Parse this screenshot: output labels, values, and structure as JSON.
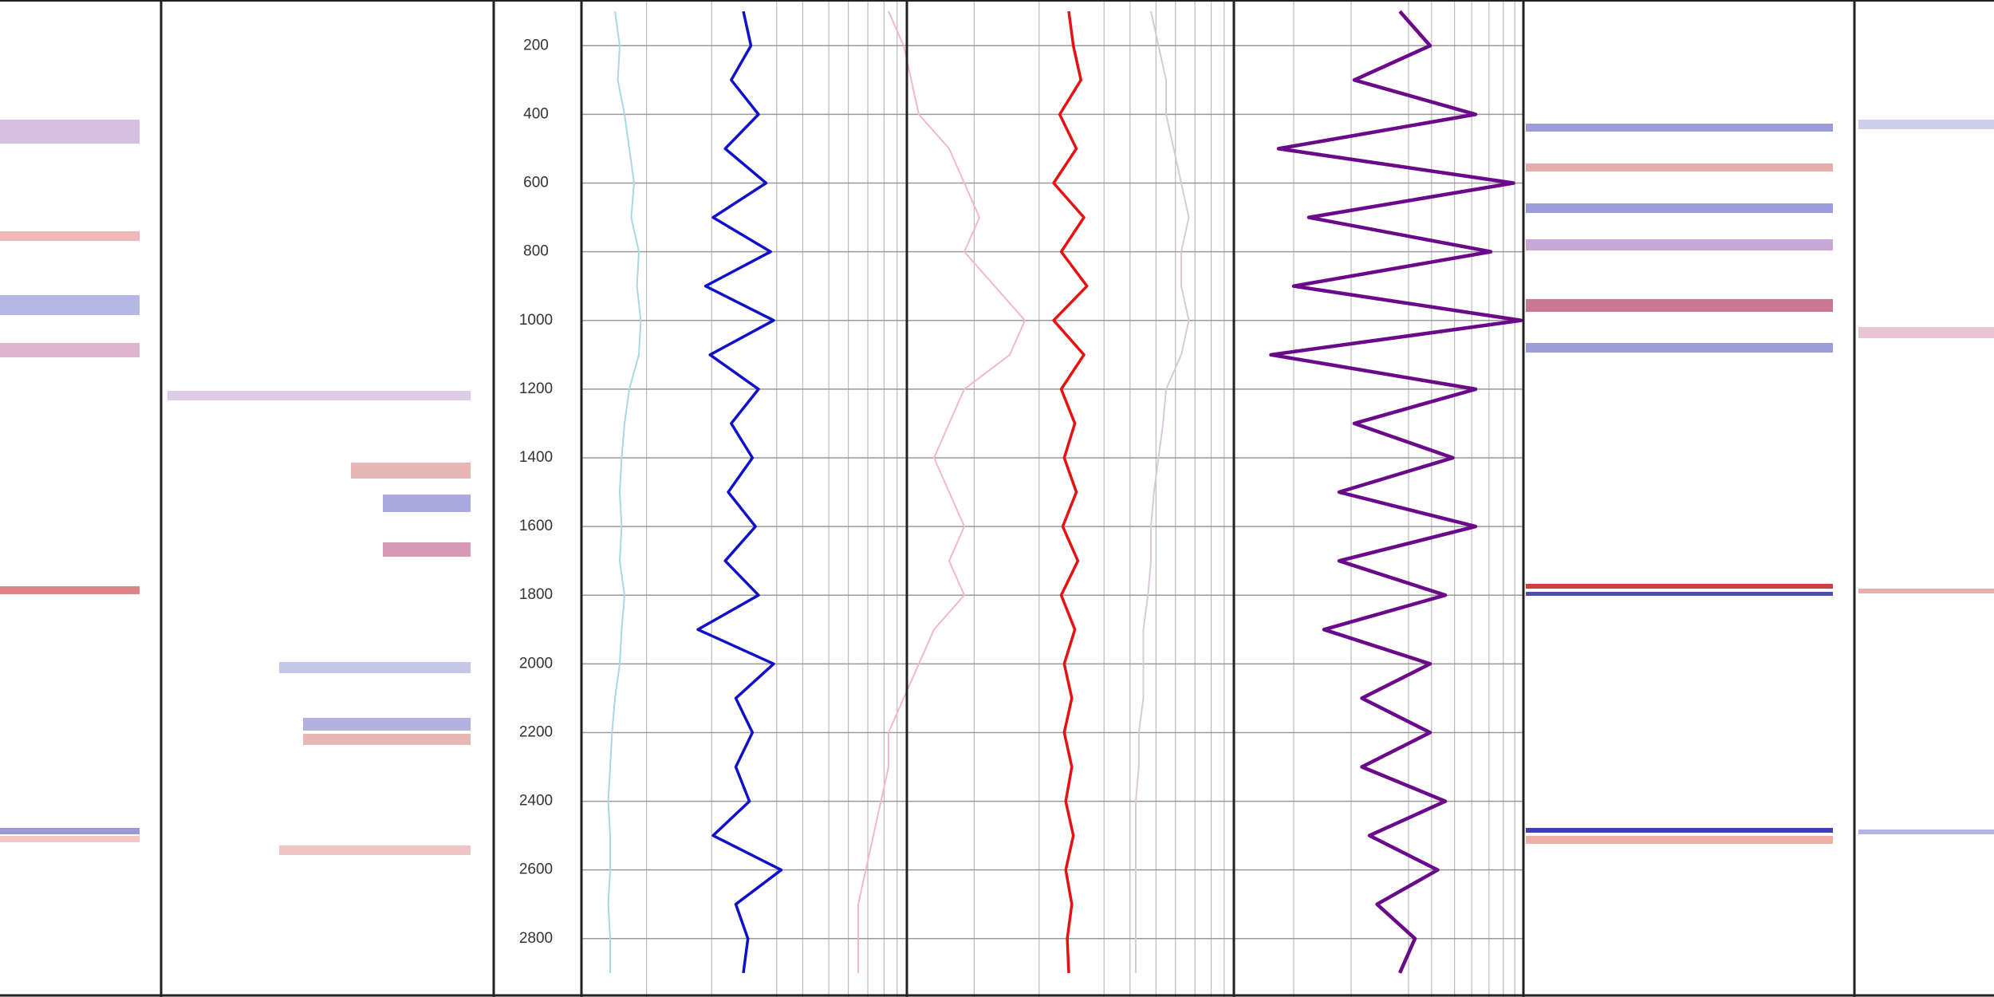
{
  "chart_data": {
    "type": "line",
    "ylim": [
      67,
      2970
    ],
    "yticks": [
      200,
      400,
      600,
      800,
      1000,
      1200,
      1400,
      1600,
      1800,
      2000,
      2200,
      2400,
      2600,
      2800
    ],
    "depth": [
      100,
      200,
      300,
      400,
      500,
      600,
      700,
      800,
      900,
      1000,
      1100,
      1200,
      1300,
      1400,
      1500,
      1600,
      1700,
      1800,
      1900,
      2000,
      2100,
      2200,
      2300,
      2400,
      2500,
      2600,
      2700,
      2800,
      2900
    ],
    "grid": true,
    "series": [
      {
        "color": "#a8d8e0",
        "values": [
          0.05,
          0.1,
          0.08,
          0.15,
          0.2,
          0.25,
          0.22,
          0.3,
          0.28,
          0.32,
          0.3,
          0.2,
          0.15,
          0.12,
          0.1,
          0.12,
          0.1,
          0.15,
          0.12,
          0.1,
          0.05,
          0.02,
          0.0,
          -0.02,
          0.0,
          0.0,
          -0.02,
          0.0,
          0.0
        ]
      },
      {
        "color": "#1010c8",
        "values": [
          0.0,
          0.05,
          -0.08,
          0.1,
          -0.12,
          0.15,
          -0.2,
          0.18,
          -0.25,
          0.2,
          -0.22,
          0.1,
          -0.08,
          0.06,
          -0.1,
          0.08,
          -0.12,
          0.1,
          -0.3,
          0.2,
          -0.05,
          0.06,
          -0.05,
          0.04,
          -0.2,
          0.25,
          -0.05,
          0.03,
          0.0
        ]
      },
      {
        "color": "#f2b8c6",
        "values": [
          -0.6,
          -0.5,
          -0.45,
          -0.4,
          -0.2,
          -0.1,
          0.0,
          -0.1,
          0.1,
          0.3,
          0.2,
          -0.1,
          -0.2,
          -0.3,
          -0.2,
          -0.1,
          -0.2,
          -0.1,
          -0.3,
          -0.4,
          -0.5,
          -0.6,
          -0.6,
          -0.65,
          -0.7,
          -0.75,
          -0.8,
          -0.8,
          -0.8
        ]
      },
      {
        "color": "#e81010",
        "values": [
          0.0,
          0.03,
          0.08,
          -0.06,
          0.05,
          -0.1,
          0.1,
          -0.05,
          0.12,
          -0.1,
          0.1,
          -0.05,
          0.04,
          -0.03,
          0.05,
          -0.04,
          0.06,
          -0.05,
          0.04,
          -0.03,
          0.02,
          -0.03,
          0.02,
          -0.02,
          0.03,
          -0.02,
          0.02,
          -0.01,
          0.0
        ]
      },
      {
        "color": "#d8c8d8",
        "values": [
          -0.8,
          -0.75,
          -0.7,
          -0.7,
          -0.65,
          -0.6,
          -0.55,
          -0.6,
          -0.6,
          -0.55,
          -0.6,
          -0.7,
          -0.72,
          -0.75,
          -0.78,
          -0.8,
          -0.8,
          -0.82,
          -0.85,
          -0.85,
          -0.85,
          -0.88,
          -0.88,
          -0.9,
          -0.9,
          -0.9,
          -0.9,
          -0.9,
          -0.9
        ]
      },
      {
        "color": "#6a0a8a",
        "values": [
          0.0,
          0.2,
          -0.3,
          0.5,
          -0.8,
          0.75,
          -0.6,
          0.6,
          -0.7,
          0.8,
          -0.85,
          0.5,
          -0.3,
          0.35,
          -0.4,
          0.5,
          -0.4,
          0.3,
          -0.5,
          0.2,
          -0.25,
          0.2,
          -0.25,
          0.3,
          -0.2,
          0.25,
          -0.15,
          0.1,
          0.0
        ]
      }
    ]
  }
}
